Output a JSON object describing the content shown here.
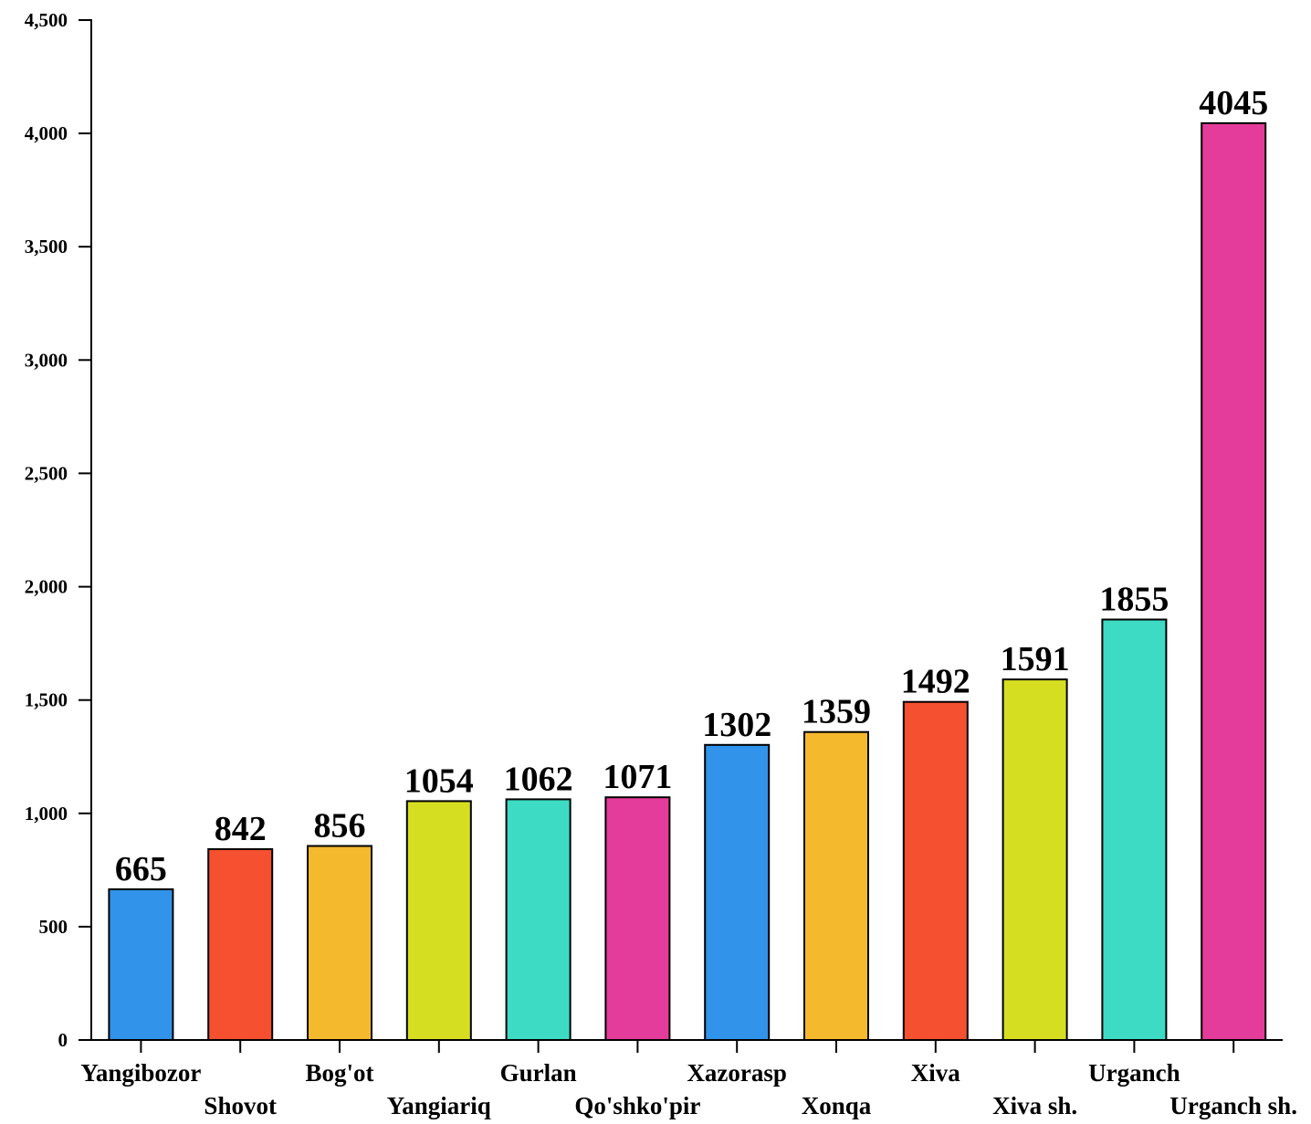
{
  "chart_data": {
    "type": "bar",
    "title": "",
    "xlabel": "",
    "ylabel": "",
    "ylim": [
      0,
      4500
    ],
    "yticks": [
      0,
      500,
      1000,
      1500,
      2000,
      2500,
      3000,
      3500,
      4000,
      4500
    ],
    "ytick_labels": [
      "0",
      "500",
      "1,000",
      "1,500",
      "2,000",
      "2,500",
      "3,000",
      "3,500",
      "4,000",
      "4,500"
    ],
    "grid": false,
    "legend": "none",
    "categories": [
      "Yangibozor",
      "Shovot",
      "Bog'ot",
      "Yangiariq",
      "Gurlan",
      "Qo'shko'pir",
      "Xazorasp",
      "Xonqa",
      "Xiva",
      "Xiva sh.",
      "Urganch",
      "Urganch sh."
    ],
    "values": [
      665,
      842,
      856,
      1054,
      1062,
      1071,
      1302,
      1359,
      1492,
      1591,
      1855,
      4045
    ],
    "data_labels": [
      "665",
      "842",
      "856",
      "1054",
      "1062",
      "1071",
      "1302",
      "1359",
      "1492",
      "1591",
      "1855",
      "4045"
    ],
    "colors": [
      "#3193EA",
      "#F5502F",
      "#F5B92E",
      "#D6DE22",
      "#3DDBC3",
      "#E43C9A",
      "#3193EA",
      "#F5B92E",
      "#F5502F",
      "#D6DE22",
      "#3DDBC3",
      "#E43C9A"
    ]
  }
}
